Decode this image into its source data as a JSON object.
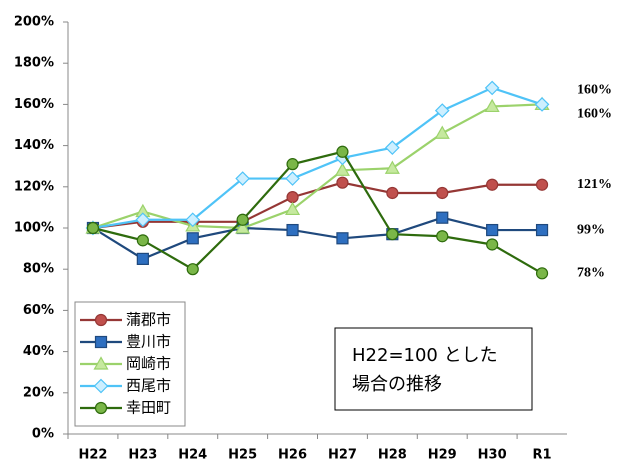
{
  "chart_data": {
    "type": "line",
    "categories": [
      "H22",
      "H23",
      "H24",
      "H25",
      "H26",
      "H27",
      "H28",
      "H29",
      "H30",
      "R1"
    ],
    "series": [
      {
        "name": "蒲郡市",
        "color": "#953735",
        "marker_color": "#c0504d",
        "marker": "circle",
        "values": [
          100,
          103,
          103,
          103,
          115,
          122,
          117,
          117,
          121,
          121
        ],
        "value_labels": [
          null,
          null,
          null,
          null,
          null,
          null,
          null,
          null,
          null,
          "121%"
        ]
      },
      {
        "name": "豊川市",
        "color": "#1f497d",
        "marker_color": "#2e6fc0",
        "marker": "square",
        "values": [
          100,
          85,
          95,
          100,
          99,
          95,
          97,
          105,
          99,
          99
        ],
        "value_labels": [
          null,
          null,
          null,
          null,
          null,
          null,
          null,
          null,
          null,
          "99%"
        ]
      },
      {
        "name": "岡崎市",
        "color": "#9bd26b",
        "marker_color": "#c6e99f",
        "marker": "triangle",
        "values": [
          100,
          108,
          101,
          100,
          109,
          128,
          129,
          146,
          159,
          160
        ],
        "value_labels": [
          null,
          null,
          null,
          null,
          null,
          null,
          null,
          null,
          null,
          "160%"
        ]
      },
      {
        "name": "西尾市",
        "color": "#4fc3f7",
        "marker_color": "#cdefff",
        "marker": "diamond",
        "values": [
          100,
          104,
          104,
          124,
          124,
          134,
          139,
          157,
          168,
          160
        ],
        "value_labels": [
          null,
          null,
          null,
          null,
          null,
          null,
          null,
          null,
          null,
          "160%"
        ]
      },
      {
        "name": "幸田町",
        "color": "#2e6b0d",
        "marker_color": "#7ab648",
        "marker": "circle",
        "values": [
          100,
          94,
          80,
          104,
          131,
          137,
          97,
          96,
          92,
          78
        ],
        "value_labels": [
          null,
          null,
          null,
          null,
          null,
          null,
          null,
          null,
          null,
          "78%"
        ]
      }
    ],
    "ylim": [
      0,
      200
    ],
    "yticks": [
      {
        "value": 0,
        "label": "0%"
      },
      {
        "value": 20,
        "label": "20%"
      },
      {
        "value": 40,
        "label": "40%"
      },
      {
        "value": 60,
        "label": "60%"
      },
      {
        "value": 80,
        "label": "80%"
      },
      {
        "value": 100,
        "label": "100%"
      },
      {
        "value": 120,
        "label": "120%"
      },
      {
        "value": 140,
        "label": "140%"
      },
      {
        "value": 160,
        "label": "160%"
      },
      {
        "value": 180,
        "label": "180%"
      },
      {
        "value": 200,
        "label": "200%"
      }
    ],
    "grid": false,
    "legend": "lower left",
    "annotation": [
      "H22=100 とした",
      "場合の推移"
    ]
  }
}
